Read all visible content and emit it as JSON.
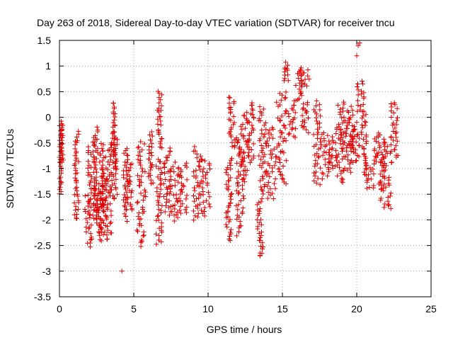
{
  "chart_data": {
    "type": "scatter",
    "title": "Day 263 of 2018, Sidereal Day-to-day VTEC variation (SDTVAR) for receiver tncu",
    "xlabel": "GPS time / hours",
    "ylabel": "SDTVAR / TECUs",
    "xlim": [
      0,
      25
    ],
    "ylim": [
      -3.5,
      1.5
    ],
    "x_ticks": [
      "0",
      "5",
      "10",
      "15",
      "20",
      "25"
    ],
    "y_ticks": [
      "1.5",
      "1",
      "0.5",
      "0",
      "-0.5",
      "-1",
      "-1.5",
      "-2",
      "-2.5",
      "-3",
      "-3.5"
    ],
    "grid": true,
    "marker": "+",
    "series_color": "#e00000",
    "grid_color": "#a0a0a0",
    "series": [
      {
        "name": "SDTVAR",
        "clusters": [
          {
            "x0": 0.0,
            "x1": 0.15,
            "y0": -1.5,
            "y1": -0.1
          },
          {
            "x0": 0.1,
            "x1": 0.25,
            "y0": -0.9,
            "y1": -0.1
          },
          {
            "x0": 1.0,
            "x1": 1.3,
            "y0": -2.0,
            "y1": -0.3
          },
          {
            "x0": 1.7,
            "x1": 2.2,
            "y0": -2.5,
            "y1": -1.5
          },
          {
            "x0": 1.9,
            "x1": 2.4,
            "y0": -1.9,
            "y1": -0.5
          },
          {
            "x0": 2.3,
            "x1": 2.6,
            "y0": -2.0,
            "y1": -0.2
          },
          {
            "x0": 2.5,
            "x1": 2.9,
            "y0": -2.4,
            "y1": -1.3
          },
          {
            "x0": 2.7,
            "x1": 3.0,
            "y0": -1.8,
            "y1": -0.5
          },
          {
            "x0": 2.8,
            "x1": 3.2,
            "y0": -2.3,
            "y1": -1.1
          },
          {
            "x0": 3.1,
            "x1": 3.5,
            "y0": -2.4,
            "y1": -0.5
          },
          {
            "x0": 3.5,
            "x1": 3.9,
            "y0": -1.6,
            "y1": -0.3
          },
          {
            "x0": 3.6,
            "x1": 3.8,
            "y0": -1.0,
            "y1": 0.3
          },
          {
            "x0": 4.3,
            "x1": 4.6,
            "y0": -2.0,
            "y1": -0.6
          },
          {
            "x0": 4.5,
            "x1": 4.9,
            "y0": -1.8,
            "y1": -0.9
          },
          {
            "x0": 5.2,
            "x1": 5.8,
            "y0": -2.5,
            "y1": -0.5
          },
          {
            "x0": 6.0,
            "x1": 6.3,
            "y0": -1.3,
            "y1": -0.3
          },
          {
            "x0": 6.5,
            "x1": 6.9,
            "y0": -2.5,
            "y1": -0.8
          },
          {
            "x0": 6.6,
            "x1": 6.9,
            "y0": -0.6,
            "y1": 0.5
          },
          {
            "x0": 7.0,
            "x1": 7.5,
            "y0": -1.9,
            "y1": -0.6
          },
          {
            "x0": 7.4,
            "x1": 8.0,
            "y0": -2.0,
            "y1": -0.9
          },
          {
            "x0": 8.0,
            "x1": 8.6,
            "y0": -1.9,
            "y1": -0.9
          },
          {
            "x0": 9.0,
            "x1": 9.5,
            "y0": -2.0,
            "y1": -0.6
          },
          {
            "x0": 9.5,
            "x1": 10.2,
            "y0": -1.9,
            "y1": -0.8
          },
          {
            "x0": 11.2,
            "x1": 11.6,
            "y0": -2.4,
            "y1": -0.8
          },
          {
            "x0": 11.4,
            "x1": 11.9,
            "y0": -0.6,
            "y1": 0.4
          },
          {
            "x0": 11.9,
            "x1": 12.4,
            "y0": -2.3,
            "y1": -0.4
          },
          {
            "x0": 12.2,
            "x1": 12.7,
            "y0": -1.3,
            "y1": 0.1
          },
          {
            "x0": 12.7,
            "x1": 13.1,
            "y0": -0.9,
            "y1": 0.3
          },
          {
            "x0": 13.3,
            "x1": 13.7,
            "y0": -2.7,
            "y1": -1.6
          },
          {
            "x0": 13.4,
            "x1": 13.9,
            "y0": -1.5,
            "y1": 0.2
          },
          {
            "x0": 13.9,
            "x1": 14.6,
            "y0": -1.6,
            "y1": -0.2
          },
          {
            "x0": 14.6,
            "x1": 15.3,
            "y0": -1.3,
            "y1": 0.5
          },
          {
            "x0": 15.1,
            "x1": 15.4,
            "y0": 0.7,
            "y1": 1.05
          },
          {
            "x0": 15.4,
            "x1": 15.9,
            "y0": -0.4,
            "y1": 0.3
          },
          {
            "x0": 15.9,
            "x1": 16.3,
            "y0": 0.3,
            "y1": 0.95
          },
          {
            "x0": 16.2,
            "x1": 16.8,
            "y0": 0.6,
            "y1": 0.95
          },
          {
            "x0": 16.3,
            "x1": 16.8,
            "y0": -0.3,
            "y1": 0.3
          },
          {
            "x0": 17.1,
            "x1": 17.6,
            "y0": -1.3,
            "y1": 0.3
          },
          {
            "x0": 17.6,
            "x1": 18.2,
            "y0": -1.2,
            "y1": -0.3
          },
          {
            "x0": 18.1,
            "x1": 18.6,
            "y0": -1.0,
            "y1": -0.4
          },
          {
            "x0": 18.6,
            "x1": 19.1,
            "y0": -1.3,
            "y1": -0.2
          },
          {
            "x0": 18.7,
            "x1": 19.3,
            "y0": -0.4,
            "y1": 0.3
          },
          {
            "x0": 19.1,
            "x1": 19.7,
            "y0": -1.1,
            "y1": -0.3
          },
          {
            "x0": 19.3,
            "x1": 19.8,
            "y0": -0.6,
            "y1": 0.2
          },
          {
            "x0": 19.7,
            "x1": 20.2,
            "y0": -0.9,
            "y1": -0.1
          },
          {
            "x0": 20.0,
            "x1": 20.5,
            "y0": 0.1,
            "y1": 0.7
          },
          {
            "x0": 20.3,
            "x1": 20.7,
            "y0": -1.1,
            "y1": 0.1
          },
          {
            "x0": 20.6,
            "x1": 21.2,
            "y0": -1.4,
            "y1": -0.9
          },
          {
            "x0": 21.1,
            "x1": 21.6,
            "y0": -0.9,
            "y1": -0.3
          },
          {
            "x0": 21.4,
            "x1": 21.9,
            "y0": -1.4,
            "y1": -0.7
          },
          {
            "x0": 21.6,
            "x1": 22.3,
            "y0": -1.8,
            "y1": -1.2
          },
          {
            "x0": 21.7,
            "x1": 22.4,
            "y0": -1.0,
            "y1": -0.4
          },
          {
            "x0": 22.3,
            "x1": 22.8,
            "y0": -0.8,
            "y1": 0.3
          }
        ],
        "outliers": [
          {
            "x": 4.2,
            "y": -3.0
          },
          {
            "x": 20.2,
            "y": 1.45
          },
          {
            "x": 20.1,
            "y": 1.4
          },
          {
            "x": 13.5,
            "y": -2.7
          },
          {
            "x": 20.0,
            "y": 1.2
          },
          {
            "x": 15.3,
            "y": 0.95
          }
        ]
      }
    ]
  }
}
